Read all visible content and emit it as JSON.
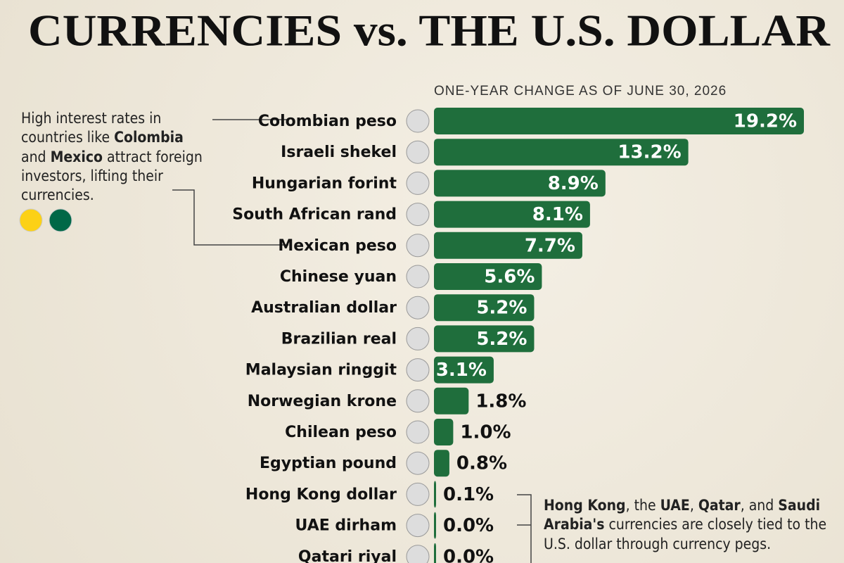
{
  "chart_data": {
    "type": "bar",
    "orientation": "horizontal",
    "title": "CURRENCIES vs. THE U.S. DOLLAR",
    "subtitle": "ONE-YEAR CHANGE AS OF JUNE 30, 2026",
    "categories": [
      "Colombian peso",
      "Israeli shekel",
      "Hungarian forint",
      "South African rand",
      "Mexican peso",
      "Chinese yuan",
      "Australian dollar",
      "Brazilian real",
      "Malaysian ringgit",
      "Norwegian krone",
      "Chilean peso",
      "Egyptian pound",
      "Hong Kong dollar",
      "UAE dirham",
      "Qatari riyal"
    ],
    "values": [
      19.2,
      13.2,
      8.9,
      8.1,
      7.7,
      5.6,
      5.2,
      5.2,
      3.1,
      1.8,
      1.0,
      0.8,
      0.1,
      0.0,
      0.0
    ],
    "value_labels": [
      "19.2%",
      "13.2%",
      "8.9%",
      "8.1%",
      "7.7%",
      "5.6%",
      "5.2%",
      "5.2%",
      "3.1%",
      "1.8%",
      "1.0%",
      "0.8%",
      "0.1%",
      "0.0%",
      "0.0%"
    ],
    "color": "#1f6e3c"
  },
  "annotations": {
    "left": [
      "High interest rates in countries like ",
      "Colombia",
      " and ",
      "Mexico",
      " attract foreign investors, lifting their currencies."
    ],
    "right": [
      "Hong Kong",
      ", the ",
      "UAE",
      ", ",
      "Qatar",
      ", and ",
      "Saudi Arabia's",
      " currencies are closely tied to the U.S. dollar through currency pegs."
    ]
  }
}
